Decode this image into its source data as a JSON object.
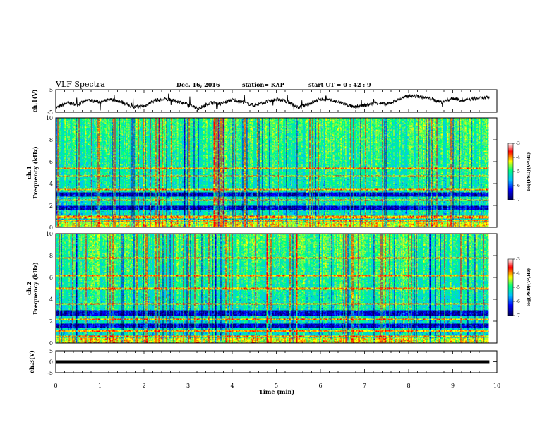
{
  "header": {
    "title": "VLF Spectra",
    "date": "Dec. 16, 2016",
    "station": "station= KAP",
    "start": "start  UT  =   0  : 42 : 9"
  },
  "chart_data": [
    {
      "type": "line",
      "panel": "ch1-voltage",
      "ylabel": "ch.1(V)",
      "ylim": [
        -5,
        5
      ],
      "yticks": [
        "5",
        "-5"
      ],
      "xlim": [
        0,
        10
      ],
      "data_end_min": 9.83,
      "x": [
        0,
        0.25,
        0.5,
        0.75,
        1.0,
        1.25,
        1.5,
        1.75,
        2.0,
        2.25,
        2.5,
        2.75,
        3.0,
        3.25,
        3.5,
        3.75,
        4.0,
        4.25,
        4.5,
        4.75,
        5.0,
        5.25,
        5.5,
        5.75,
        6.0,
        6.25,
        6.5,
        6.75,
        7.0,
        7.25,
        7.5,
        7.75,
        8.0,
        8.25,
        8.5,
        8.75,
        9.0,
        9.25,
        9.5,
        9.83
      ],
      "y": [
        -3.2,
        -1.0,
        -1.5,
        0.4,
        -0.5,
        0.6,
        -0.4,
        -2.8,
        -2.3,
        0.3,
        0.8,
        -0.2,
        -1.6,
        -3.3,
        -0.8,
        -1.2,
        0.6,
        -0.5,
        -2.0,
        -0.6,
        0.7,
        -0.3,
        -3.0,
        -1.2,
        0.9,
        0.2,
        -1.0,
        -2.8,
        -2.0,
        -0.8,
        -1.6,
        0.5,
        2.2,
        2.0,
        0.9,
        -0.6,
        1.3,
        0.2,
        1.0,
        1.5
      ]
    },
    {
      "type": "heatmap",
      "panel": "ch1-spectrogram",
      "ylabel": "ch.1",
      "ylabel2": "Frequency  (kHz)",
      "ylim": [
        0,
        10
      ],
      "yticks": [
        "0",
        "2",
        "4",
        "6",
        "8",
        "10"
      ],
      "xlim": [
        0,
        10
      ],
      "data_end_min": 9.83,
      "band_dark_khz": [
        2.8,
        3.2,
        1.6,
        1.95
      ],
      "band_bright_khz": [
        0.2,
        0.35,
        0.6,
        0.85,
        1.0,
        2.5,
        3.5,
        4.7,
        5.4
      ],
      "colorbar": {
        "label": "log(PSD)(V²/Hz)",
        "range": [
          -7,
          -3
        ],
        "ticks": [
          "-3",
          "-4",
          "-5",
          "-6",
          "-7"
        ]
      }
    },
    {
      "type": "heatmap",
      "panel": "ch2-spectrogram",
      "ylabel": "ch.2",
      "ylabel2": "Frequency  (kHz)",
      "ylim": [
        0,
        10
      ],
      "yticks": [
        "0",
        "2",
        "4",
        "6",
        "8",
        "10"
      ],
      "xlim": [
        0,
        10
      ],
      "data_end_min": 9.83,
      "band_dark_khz": [
        1.4,
        1.8,
        2.5,
        3.0
      ],
      "band_bright_khz": [
        0.4,
        0.6,
        1.1,
        2.2,
        3.6,
        5.0,
        6.2,
        7.8
      ],
      "colorbar": {
        "label": "log(PSD)(V²/Hz)",
        "range": [
          -7,
          -3
        ],
        "ticks": [
          "-3",
          "-4",
          "-5",
          "-6",
          "-7"
        ]
      }
    },
    {
      "type": "line",
      "panel": "ch3-voltage",
      "ylabel": "ch.3(V)",
      "ylim": [
        -5,
        5
      ],
      "yticks": [
        "5",
        "0",
        "-5"
      ],
      "xlim": [
        0,
        10
      ],
      "data_end_min": 9.83,
      "x": [
        0,
        9.83
      ],
      "y": [
        0,
        0
      ]
    }
  ],
  "xaxis": {
    "label": "Time  (min)",
    "ticks": [
      "0",
      "1",
      "2",
      "3",
      "4",
      "5",
      "6",
      "7",
      "8",
      "9",
      "10"
    ]
  },
  "colors": {
    "colormap": [
      "#00005a",
      "#0000ff",
      "#00bfff",
      "#00ff7f",
      "#ffff00",
      "#ff0000",
      "#ffffff"
    ]
  }
}
